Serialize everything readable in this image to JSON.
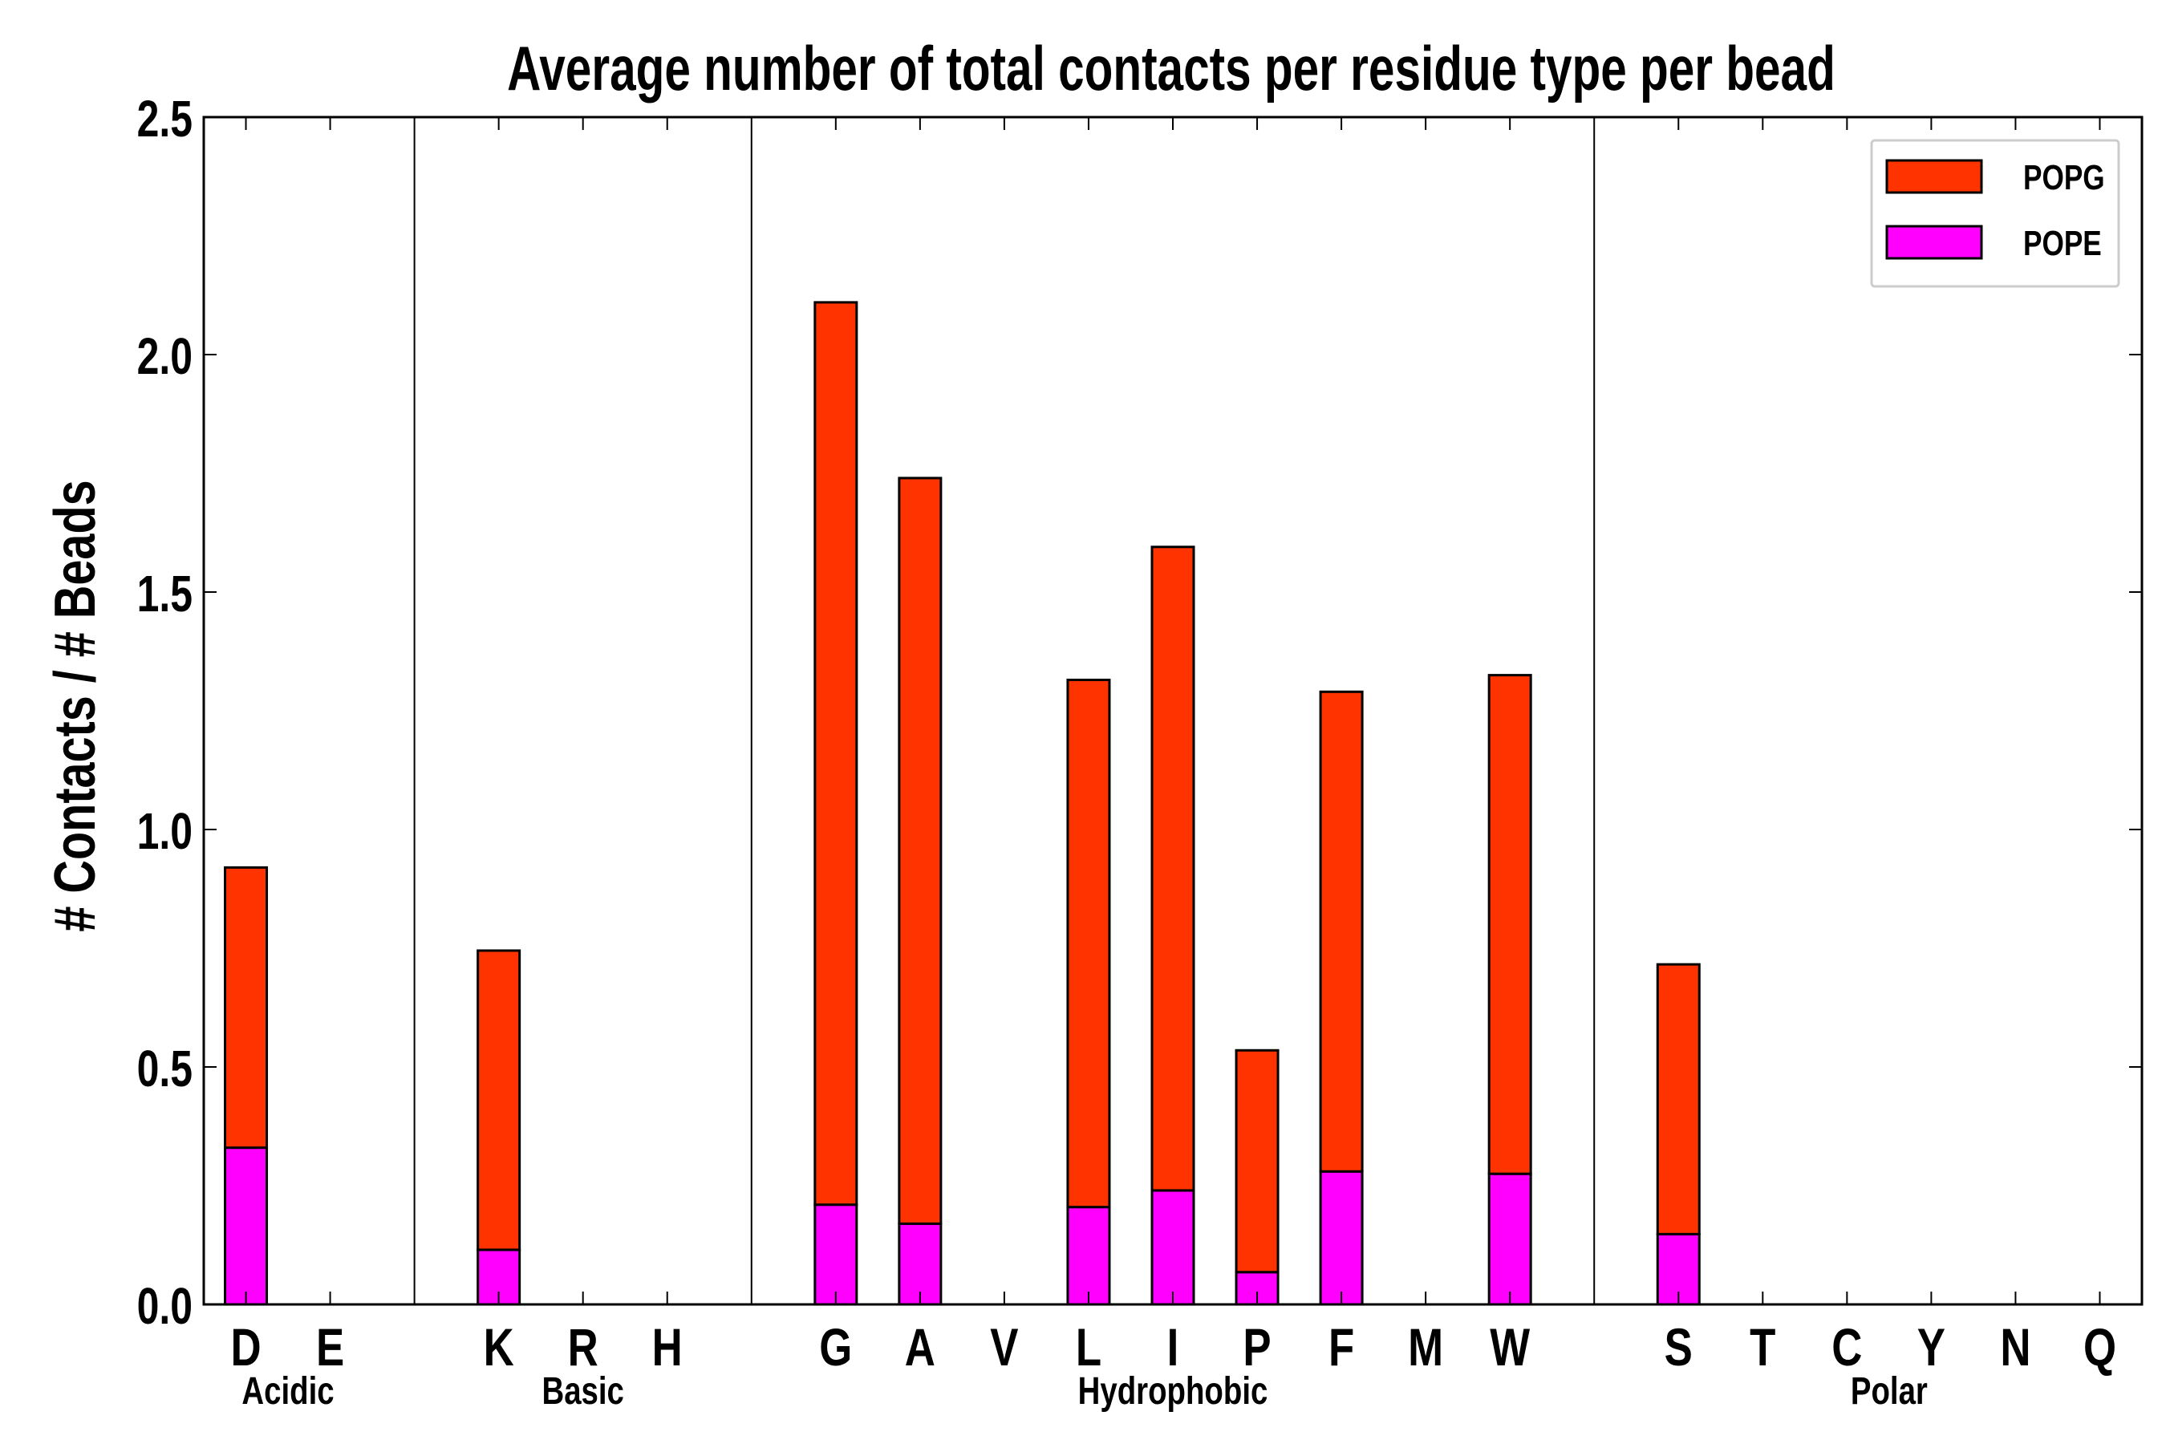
{
  "chart_data": {
    "type": "bar",
    "stacked": true,
    "title": "Average number of total contacts per residue type per bead",
    "xlabel": "",
    "ylabel": "# Contacts / # Beads",
    "ylim": [
      0,
      2.5
    ],
    "yticks": [
      "0.0",
      "0.5",
      "1.0",
      "1.5",
      "2.0",
      "2.5"
    ],
    "categories": [
      "D",
      "E",
      "",
      "K",
      "R",
      "H",
      "",
      "G",
      "A",
      "V",
      "L",
      "I",
      "P",
      "F",
      "M",
      "W",
      "",
      "S",
      "T",
      "C",
      "Y",
      "N",
      "Q"
    ],
    "groups": [
      {
        "name": "Acidic",
        "start": 0,
        "end": 1
      },
      {
        "name": "Basic",
        "start": 3,
        "end": 5
      },
      {
        "name": "Hydrophobic",
        "start": 7,
        "end": 15
      },
      {
        "name": "Polar",
        "start": 17,
        "end": 22
      }
    ],
    "series": [
      {
        "name": "POPE",
        "color": "#ff00ff",
        "values": [
          0.33,
          0,
          0,
          0.115,
          0,
          0,
          0,
          0.21,
          0.17,
          0,
          0.205,
          0.24,
          0.068,
          0.28,
          0,
          0.275,
          0,
          0.148,
          0,
          0,
          0,
          0,
          0
        ]
      },
      {
        "name": "POPG",
        "color": "#ff3300",
        "values": [
          0.59,
          0,
          0,
          0.63,
          0,
          0,
          0,
          1.9,
          1.57,
          0,
          1.11,
          1.355,
          0.467,
          1.01,
          0,
          1.05,
          0,
          0.568,
          0,
          0,
          0,
          0,
          0
        ]
      }
    ],
    "legend": {
      "position": "top-right",
      "entries": [
        "POPG",
        "POPE"
      ]
    },
    "grid": false
  }
}
